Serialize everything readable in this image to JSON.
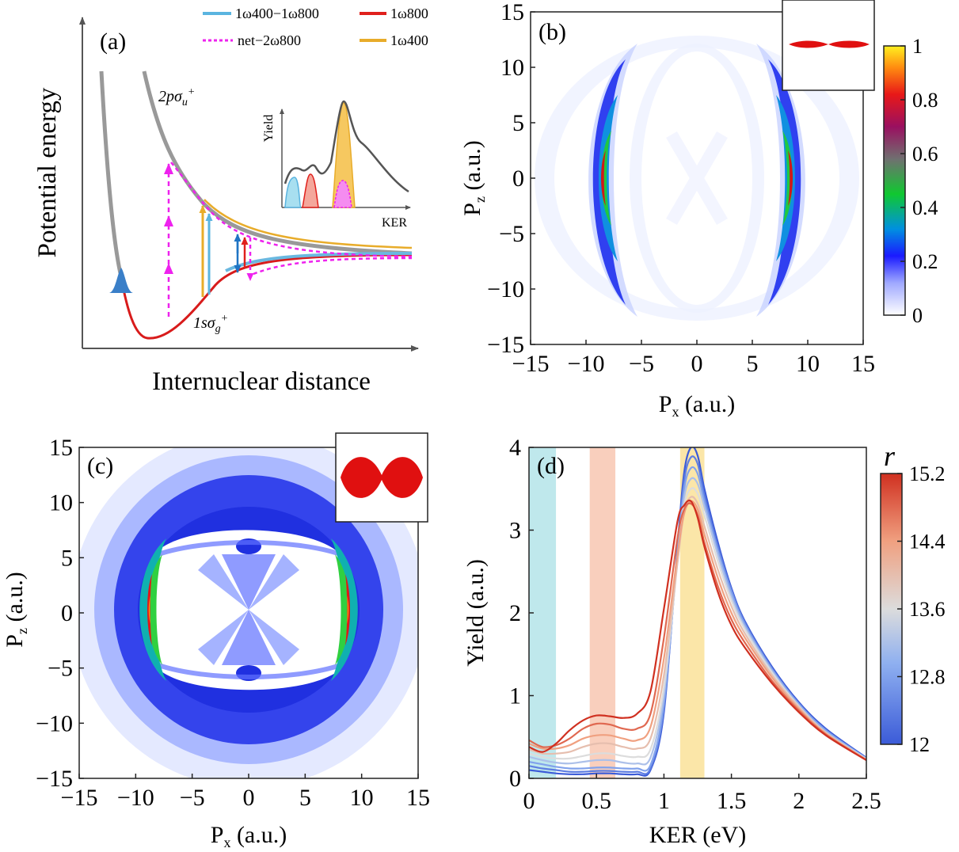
{
  "chart_data": [
    {
      "type": "diagram",
      "panel": "(a)",
      "xlabel": "Internuclear distance",
      "ylabel": "Potential energy",
      "curves": {
        "upper": "2pσu+",
        "lower": "1sσg+"
      },
      "legend": [
        {
          "label": "1ω400−1ω800",
          "color": "#5ab4e0"
        },
        {
          "label": "1ω800",
          "color": "#e0201c"
        },
        {
          "label": "net−2ω800",
          "color": "#ee22ee"
        },
        {
          "label": "1ω400",
          "color": "#e8ac2a"
        }
      ],
      "inset": {
        "xlabel": "KER",
        "ylabel": "Yield"
      }
    },
    {
      "type": "heatmap",
      "panel": "(b)",
      "xlabel": "Px (a.u.)",
      "ylabel": "Pz (a.u.)",
      "xlim": [
        -15,
        15
      ],
      "ylim": [
        -15,
        15
      ],
      "x_ticks": [
        -15,
        -10,
        -5,
        0,
        5,
        10,
        15
      ],
      "y_ticks": [
        15,
        10,
        5,
        0,
        -5,
        -10,
        -15
      ],
      "colorbar": {
        "min": 0,
        "max": 1,
        "ticks": [
          1,
          0.8,
          0.6,
          0.4,
          0.2,
          0
        ]
      }
    },
    {
      "type": "heatmap",
      "panel": "(c)",
      "xlabel": "Px (a.u.)",
      "ylabel": "Pz (a.u.)",
      "xlim": [
        -15,
        15
      ],
      "ylim": [
        -15,
        15
      ],
      "x_ticks": [
        -15,
        -10,
        -5,
        0,
        5,
        10,
        15
      ],
      "y_ticks": [
        15,
        10,
        5,
        0,
        -5,
        -10,
        -15
      ]
    },
    {
      "type": "line",
      "panel": "(d)",
      "xlabel": "KER (eV)",
      "ylabel": "Yield (a.u.)",
      "xlim": [
        0,
        2.5
      ],
      "ylim": [
        0,
        4
      ],
      "x_ticks": [
        "0",
        "0.5",
        "1",
        "1.5",
        "2",
        "2.5"
      ],
      "y_ticks": [
        "4",
        "3",
        "2",
        "1",
        "0"
      ],
      "bands": [
        {
          "from": 0.0,
          "to": 0.2,
          "color": "#bfe8ec"
        },
        {
          "from": 0.45,
          "to": 0.64,
          "color": "#f9cfbd"
        },
        {
          "from": 1.12,
          "to": 1.3,
          "color": "#fbe6a8"
        }
      ],
      "colorbar": {
        "label": "r",
        "min": 12,
        "max": 15.2,
        "ticks": [
          "15.2",
          "14.4",
          "13.6",
          "12.8",
          "12"
        ]
      },
      "x": [
        0.0,
        0.1,
        0.2,
        0.3,
        0.4,
        0.5,
        0.6,
        0.7,
        0.8,
        0.9,
        1.0,
        1.1,
        1.15,
        1.2,
        1.25,
        1.3,
        1.4,
        1.5,
        1.6,
        1.8,
        2.0,
        2.2,
        2.5
      ],
      "series": [
        {
          "r": 12.0,
          "values": [
            0.1,
            0.08,
            0.06,
            0.05,
            0.05,
            0.06,
            0.06,
            0.05,
            0.05,
            0.1,
            0.8,
            2.8,
            3.7,
            4.0,
            3.9,
            3.5,
            2.85,
            2.3,
            1.9,
            1.35,
            0.92,
            0.6,
            0.25
          ]
        },
        {
          "r": 12.4,
          "values": [
            0.15,
            0.12,
            0.1,
            0.08,
            0.08,
            0.09,
            0.09,
            0.08,
            0.08,
            0.12,
            0.85,
            2.75,
            3.6,
            3.88,
            3.8,
            3.42,
            2.8,
            2.28,
            1.88,
            1.33,
            0.9,
            0.58,
            0.24
          ]
        },
        {
          "r": 12.8,
          "values": [
            0.2,
            0.17,
            0.14,
            0.12,
            0.12,
            0.13,
            0.13,
            0.12,
            0.12,
            0.16,
            0.9,
            2.7,
            3.5,
            3.75,
            3.68,
            3.35,
            2.75,
            2.25,
            1.86,
            1.32,
            0.9,
            0.58,
            0.24
          ]
        },
        {
          "r": 13.2,
          "values": [
            0.26,
            0.22,
            0.19,
            0.18,
            0.2,
            0.22,
            0.22,
            0.19,
            0.18,
            0.25,
            1.0,
            2.65,
            3.4,
            3.62,
            3.56,
            3.28,
            2.7,
            2.2,
            1.83,
            1.3,
            0.88,
            0.56,
            0.24
          ]
        },
        {
          "r": 13.6,
          "values": [
            0.3,
            0.26,
            0.24,
            0.24,
            0.27,
            0.3,
            0.3,
            0.27,
            0.26,
            0.35,
            1.1,
            2.6,
            3.3,
            3.5,
            3.44,
            3.18,
            2.62,
            2.15,
            1.8,
            1.28,
            0.87,
            0.55,
            0.23
          ]
        },
        {
          "r": 14.0,
          "values": [
            0.35,
            0.3,
            0.3,
            0.32,
            0.38,
            0.42,
            0.42,
            0.38,
            0.36,
            0.48,
            1.25,
            2.6,
            3.22,
            3.4,
            3.32,
            3.05,
            2.52,
            2.08,
            1.75,
            1.25,
            0.86,
            0.55,
            0.23
          ]
        },
        {
          "r": 14.4,
          "values": [
            0.42,
            0.36,
            0.36,
            0.4,
            0.48,
            0.52,
            0.52,
            0.48,
            0.46,
            0.62,
            1.45,
            2.7,
            3.2,
            3.35,
            3.25,
            2.95,
            2.42,
            2.0,
            1.7,
            1.22,
            0.84,
            0.54,
            0.22
          ]
        },
        {
          "r": 14.8,
          "values": [
            0.46,
            0.38,
            0.4,
            0.48,
            0.6,
            0.66,
            0.65,
            0.6,
            0.6,
            0.78,
            1.7,
            2.9,
            3.25,
            3.32,
            3.18,
            2.85,
            2.32,
            1.92,
            1.64,
            1.18,
            0.82,
            0.53,
            0.22
          ]
        },
        {
          "r": 15.2,
          "values": [
            0.38,
            0.32,
            0.42,
            0.58,
            0.7,
            0.76,
            0.75,
            0.73,
            0.78,
            1.05,
            2.05,
            3.1,
            3.3,
            3.35,
            3.15,
            2.8,
            2.25,
            1.85,
            1.58,
            1.15,
            0.8,
            0.52,
            0.22
          ]
        }
      ]
    }
  ]
}
